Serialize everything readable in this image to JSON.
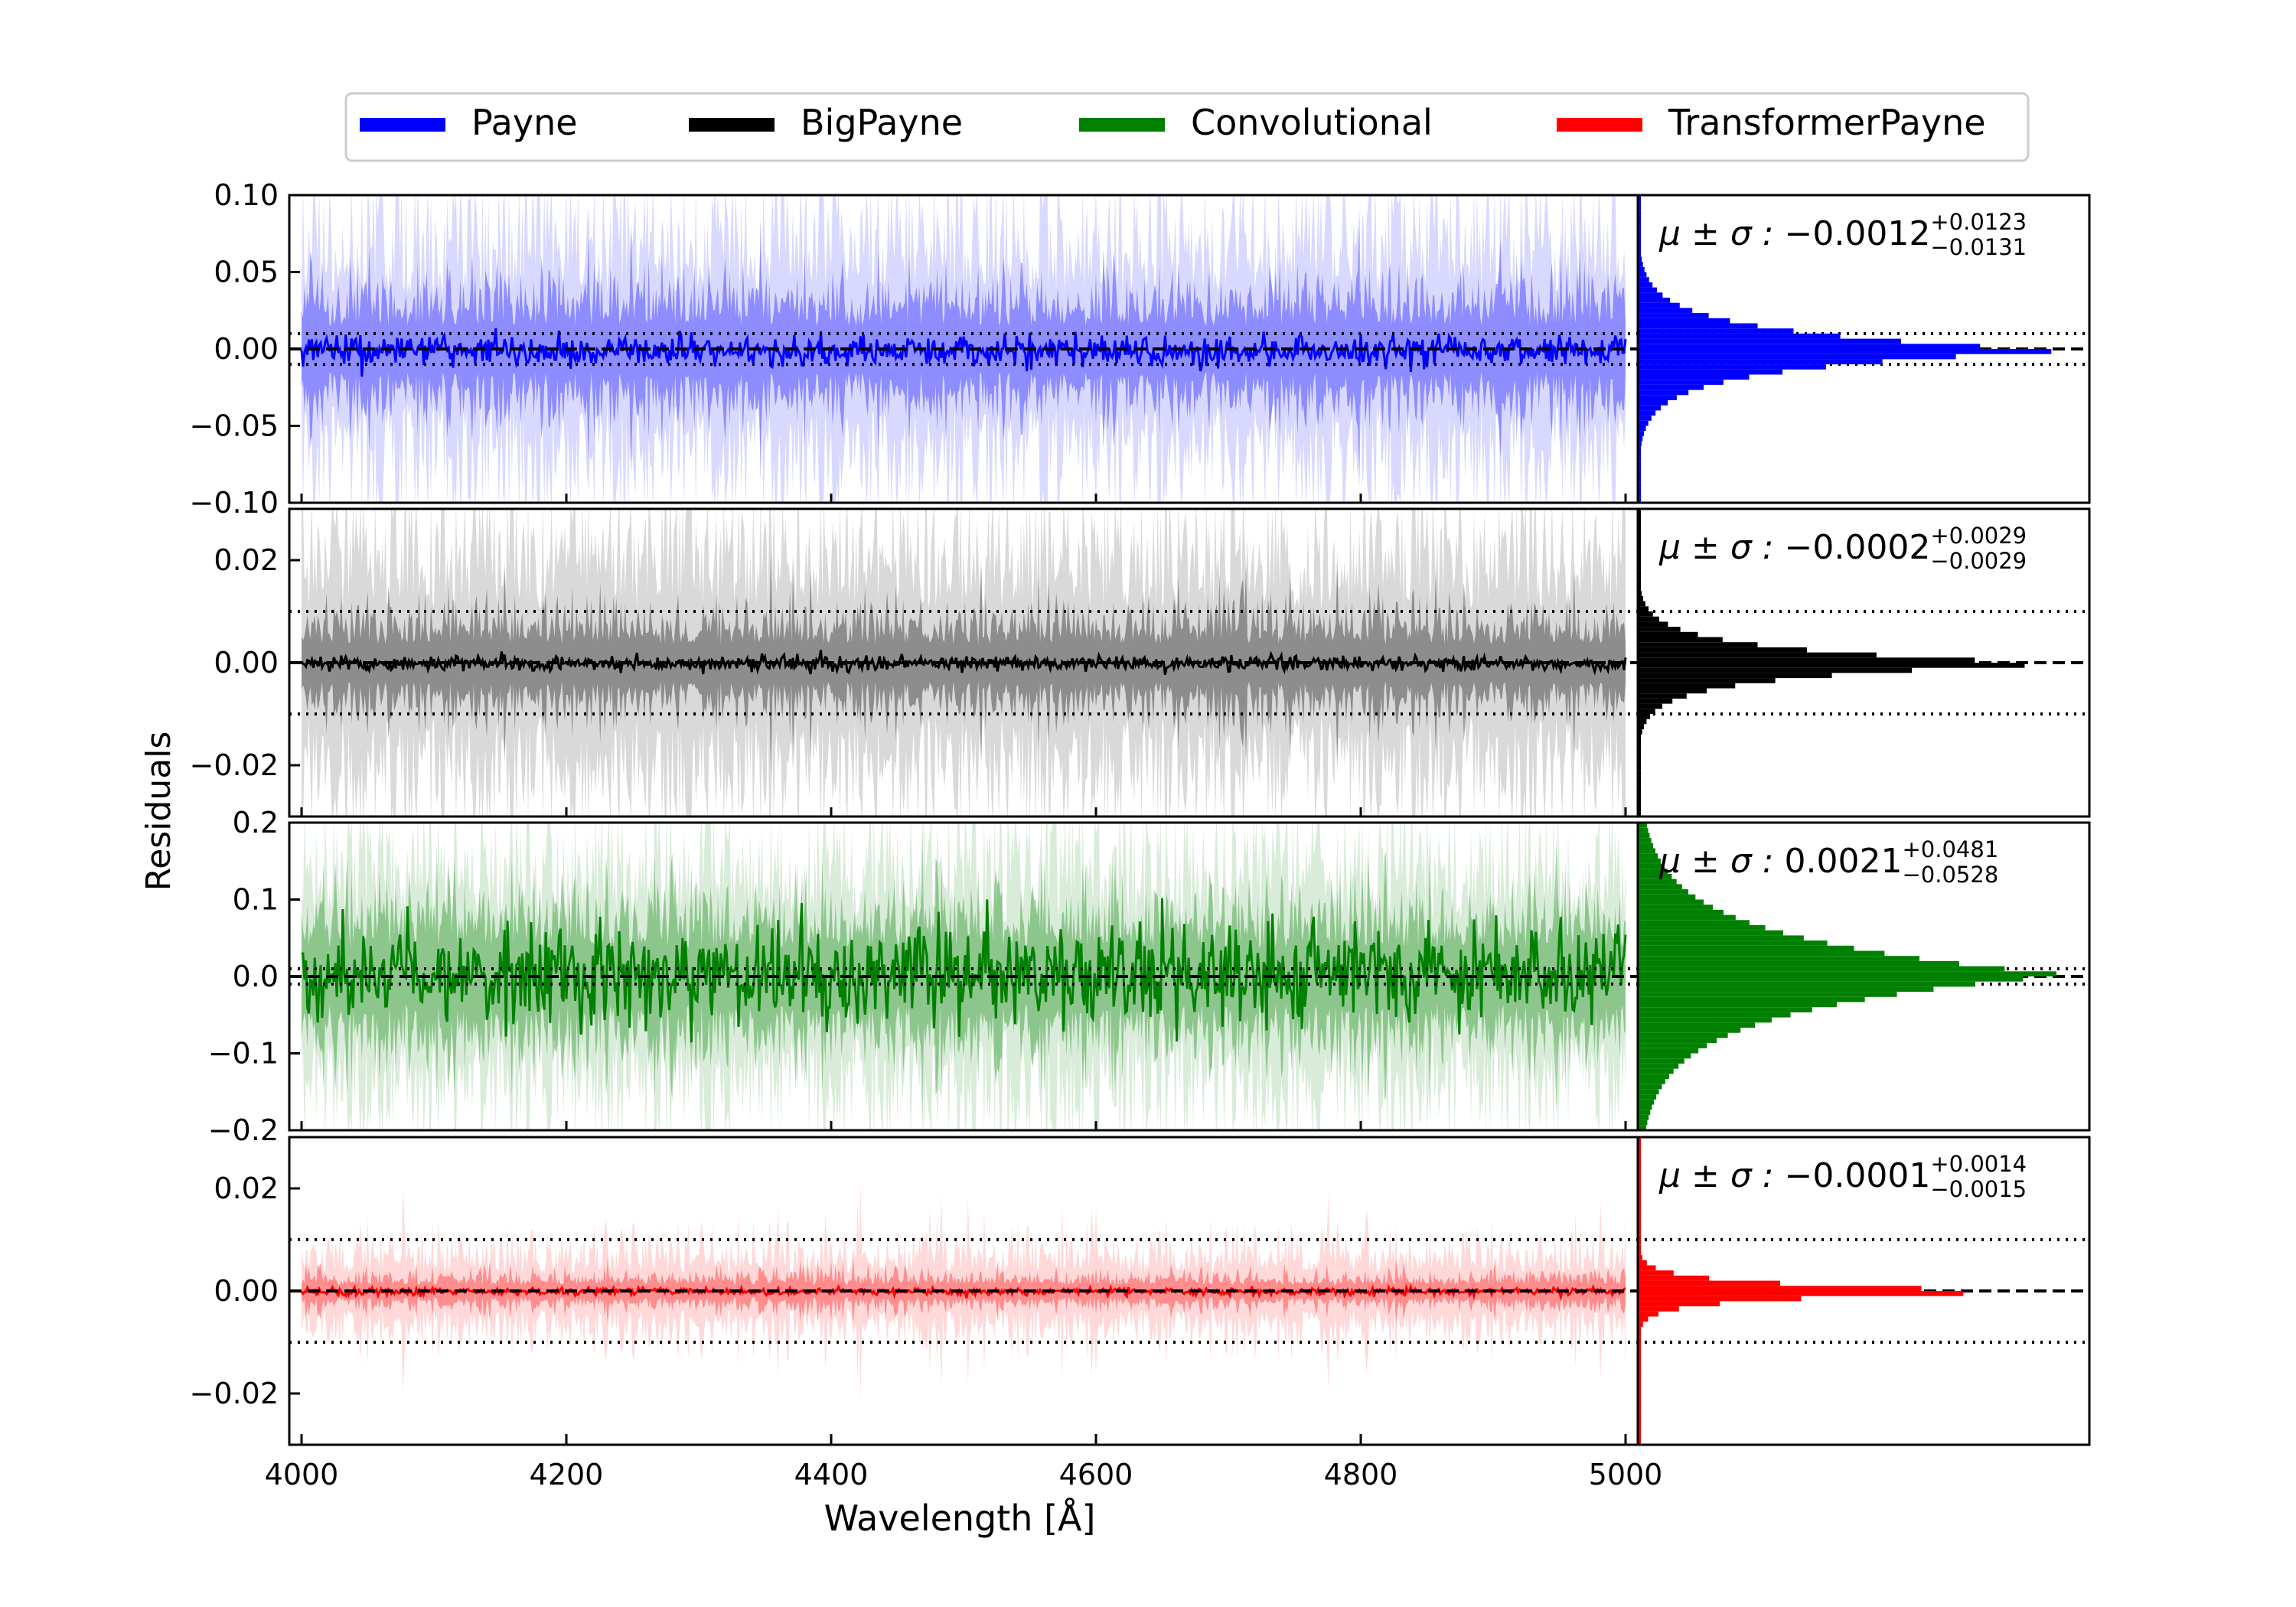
{
  "legend": {
    "entries": [
      {
        "label": "Payne",
        "color": "#0000ff"
      },
      {
        "label": "BigPayne",
        "color": "#000000"
      },
      {
        "label": "Convolutional",
        "color": "#008000"
      },
      {
        "label": "TransformerPayne",
        "color": "#ff0000"
      }
    ],
    "placement": "top-center"
  },
  "axes_text": {
    "ylabel": "Residuals",
    "xlabel": "Wavelength [Å]",
    "stat_prefix": "μ ± σ : "
  },
  "chart_data": {
    "type": "line",
    "x_range": [
      4000,
      5000
    ],
    "x_ticks": [
      4000,
      4200,
      4400,
      4600,
      4800,
      5000
    ],
    "x_tick_labels": [
      "4000",
      "4200",
      "4400",
      "4600",
      "4800",
      "5000"
    ],
    "shared_x": true,
    "grid": false,
    "reference_lines": {
      "zero": 0.0,
      "dotted": [
        0.01,
        -0.01
      ]
    },
    "panels": [
      {
        "series": "Payne",
        "color": "#0000ff",
        "ylim": [
          -0.1,
          0.1
        ],
        "y_ticks": [
          0.1,
          0.05,
          0.0,
          -0.05,
          -0.1
        ],
        "y_tick_labels": [
          "0.10",
          "0.05",
          "0.00",
          "−0.05",
          "−0.10"
        ],
        "median": -0.0012,
        "plus": 0.0123,
        "minus": 0.0131,
        "stat_value": "−0.0012",
        "stat_plus": "+0.0123",
        "stat_minus": "−0.0131",
        "band_inner": 0.05,
        "band_outer": 0.1,
        "median_spread": 0.008
      },
      {
        "series": "BigPayne",
        "color": "#000000",
        "ylim": [
          -0.03,
          0.03
        ],
        "y_ticks": [
          0.02,
          0.0,
          -0.02
        ],
        "y_tick_labels": [
          "0.02",
          "0.00",
          "−0.02"
        ],
        "median": -0.0002,
        "plus": 0.0029,
        "minus": 0.0029,
        "stat_value": "−0.0002",
        "stat_plus": "+0.0029",
        "stat_minus": "−0.0029",
        "band_inner": 0.012,
        "band_outer": 0.03,
        "median_spread": 0.0012
      },
      {
        "series": "Convolutional",
        "color": "#008000",
        "ylim": [
          -0.2,
          0.2
        ],
        "y_ticks": [
          0.2,
          0.1,
          0.0,
          -0.1,
          -0.2
        ],
        "y_tick_labels": [
          "0.2",
          "0.1",
          "0.0",
          "−0.1",
          "−0.2"
        ],
        "median": 0.0021,
        "plus": 0.0481,
        "minus": 0.0528,
        "stat_value": "0.0021",
        "stat_plus": "+0.0481",
        "stat_minus": "−0.0528",
        "band_inner": 0.12,
        "band_outer": 0.2,
        "median_spread": 0.05
      },
      {
        "series": "TransformerPayne",
        "color": "#ff0000",
        "ylim": [
          -0.03,
          0.03
        ],
        "y_ticks": [
          0.02,
          0.0,
          -0.02
        ],
        "y_tick_labels": [
          "0.02",
          "0.00",
          "−0.02"
        ],
        "median": -0.0001,
        "plus": 0.0014,
        "minus": 0.0015,
        "stat_value": "−0.0001",
        "stat_plus": "+0.0014",
        "stat_minus": "−0.0015",
        "band_inner": 0.004,
        "band_outer": 0.01,
        "median_spread": 0.0006
      }
    ]
  }
}
